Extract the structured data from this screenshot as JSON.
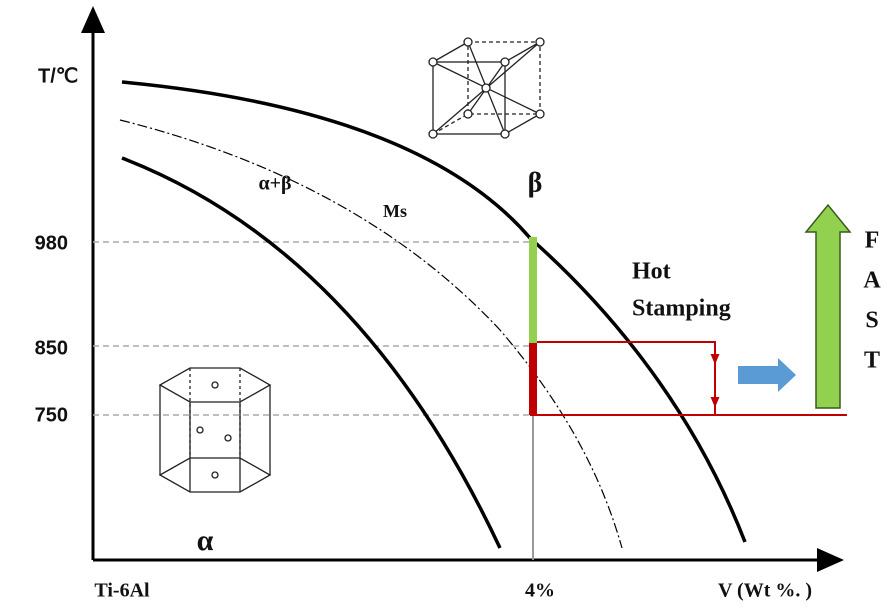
{
  "axes": {
    "y_label": "T/℃",
    "y_ticks": [
      "980",
      "850",
      "750"
    ],
    "x_left": "Ti-6Al",
    "x_mark": "4%",
    "x_right": "V (Wt %. )"
  },
  "regions": {
    "beta": "β",
    "alpha_beta": "α+β",
    "ms": "Ms",
    "alpha": "α"
  },
  "process": {
    "line1": "Hot",
    "line2": "Stamping"
  },
  "fast": [
    "F",
    "A",
    "S",
    "T"
  ]
}
